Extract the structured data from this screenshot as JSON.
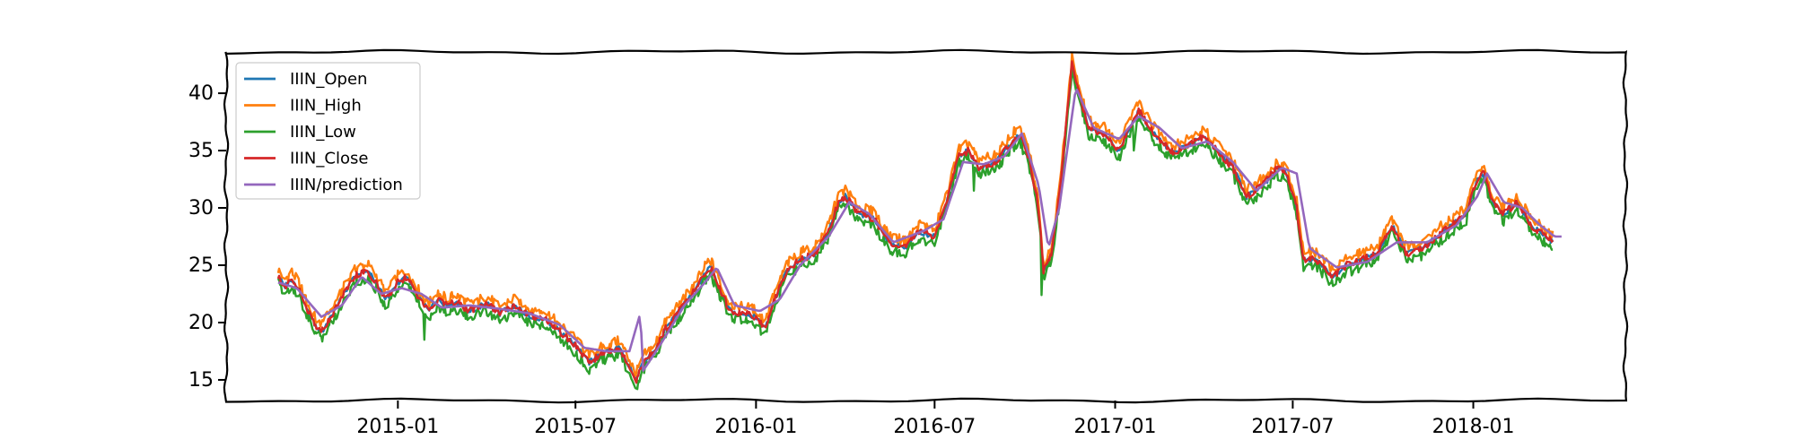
{
  "chart_data": {
    "type": "line",
    "title": "",
    "xlabel": "",
    "ylabel": "",
    "x_tick_labels": [
      "2015-01",
      "2015-07",
      "2016-01",
      "2016-07",
      "2017-01",
      "2017-07",
      "2018-01"
    ],
    "y_ticks": [
      15,
      20,
      25,
      30,
      35,
      40
    ],
    "xlim": [
      "2014-07-10",
      "2018-06-05"
    ],
    "ylim": [
      13.2,
      43.6
    ],
    "grid": false,
    "legend_position": "top-left",
    "series": [
      {
        "name": "IIIN_Open",
        "color": "#1f77b4"
      },
      {
        "name": "IIIN_High",
        "color": "#ff7f0e"
      },
      {
        "name": "IIIN_Low",
        "color": "#2ca02c"
      },
      {
        "name": "IIIN_Close",
        "color": "#d62728"
      },
      {
        "name": "IIIN/prediction",
        "color": "#9467bd"
      }
    ],
    "close_points": [
      [
        "2014-09-01",
        24.0
      ],
      [
        "2014-09-08",
        23.2
      ],
      [
        "2014-09-15",
        23.8
      ],
      [
        "2014-09-22",
        22.9
      ],
      [
        "2014-10-01",
        21.0
      ],
      [
        "2014-10-10",
        19.6
      ],
      [
        "2014-10-17",
        19.3
      ],
      [
        "2014-10-24",
        20.5
      ],
      [
        "2014-11-01",
        21.5
      ],
      [
        "2014-11-10",
        23.0
      ],
      [
        "2014-11-20",
        24.2
      ],
      [
        "2014-12-01",
        24.5
      ],
      [
        "2014-12-10",
        23.5
      ],
      [
        "2014-12-20",
        22.0
      ],
      [
        "2015-01-01",
        23.5
      ],
      [
        "2015-01-10",
        24.0
      ],
      [
        "2015-01-20",
        22.5
      ],
      [
        "2015-02-01",
        21.0
      ],
      [
        "2015-02-10",
        22.0
      ],
      [
        "2015-02-20",
        21.5
      ],
      [
        "2015-03-01",
        21.8
      ],
      [
        "2015-03-15",
        21.0
      ],
      [
        "2015-04-01",
        21.7
      ],
      [
        "2015-04-15",
        20.8
      ],
      [
        "2015-05-01",
        21.5
      ],
      [
        "2015-05-15",
        20.6
      ],
      [
        "2015-06-01",
        20.3
      ],
      [
        "2015-06-15",
        19.2
      ],
      [
        "2015-07-01",
        18.0
      ],
      [
        "2015-07-15",
        16.5
      ],
      [
        "2015-08-01",
        17.5
      ],
      [
        "2015-08-15",
        17.8
      ],
      [
        "2015-09-01",
        15.0
      ],
      [
        "2015-09-08",
        16.5
      ],
      [
        "2015-09-20",
        17.5
      ],
      [
        "2015-10-01",
        19.5
      ],
      [
        "2015-10-15",
        21.0
      ],
      [
        "2015-11-01",
        23.0
      ],
      [
        "2015-11-15",
        25.0
      ],
      [
        "2015-11-25",
        23.0
      ],
      [
        "2015-12-05",
        21.0
      ],
      [
        "2015-12-20",
        20.8
      ],
      [
        "2016-01-01",
        20.5
      ],
      [
        "2016-01-10",
        19.5
      ],
      [
        "2016-01-20",
        22.0
      ],
      [
        "2016-02-01",
        24.5
      ],
      [
        "2016-02-15",
        25.5
      ],
      [
        "2016-03-01",
        26.0
      ],
      [
        "2016-03-15",
        28.0
      ],
      [
        "2016-03-25",
        30.5
      ],
      [
        "2016-04-01",
        31.0
      ],
      [
        "2016-04-15",
        29.5
      ],
      [
        "2016-05-01",
        29.0
      ],
      [
        "2016-05-15",
        27.0
      ],
      [
        "2016-06-01",
        26.5
      ],
      [
        "2016-06-15",
        28.0
      ],
      [
        "2016-07-01",
        27.5
      ],
      [
        "2016-07-15",
        31.0
      ],
      [
        "2016-07-25",
        34.5
      ],
      [
        "2016-08-05",
        35.0
      ],
      [
        "2016-08-15",
        33.5
      ],
      [
        "2016-09-01",
        34.0
      ],
      [
        "2016-09-15",
        35.5
      ],
      [
        "2016-09-25",
        36.5
      ],
      [
        "2016-10-05",
        34.5
      ],
      [
        "2016-10-15",
        30.0
      ],
      [
        "2016-10-20",
        24.5
      ],
      [
        "2016-10-28",
        26.0
      ],
      [
        "2016-11-05",
        31.0
      ],
      [
        "2016-11-12",
        37.0
      ],
      [
        "2016-11-18",
        42.5
      ],
      [
        "2016-11-25",
        40.0
      ],
      [
        "2016-12-05",
        37.0
      ],
      [
        "2016-12-20",
        36.5
      ],
      [
        "2017-01-05",
        35.0
      ],
      [
        "2017-01-15",
        37.0
      ],
      [
        "2017-01-25",
        38.5
      ],
      [
        "2017-02-05",
        37.0
      ],
      [
        "2017-02-15",
        36.0
      ],
      [
        "2017-03-01",
        34.8
      ],
      [
        "2017-03-15",
        35.5
      ],
      [
        "2017-04-01",
        36.2
      ],
      [
        "2017-04-15",
        35.0
      ],
      [
        "2017-05-01",
        33.5
      ],
      [
        "2017-05-15",
        31.0
      ],
      [
        "2017-06-01",
        32.0
      ],
      [
        "2017-06-15",
        33.5
      ],
      [
        "2017-06-25",
        33.0
      ],
      [
        "2017-07-05",
        30.0
      ],
      [
        "2017-07-12",
        25.5
      ],
      [
        "2017-07-25",
        25.5
      ],
      [
        "2017-08-10",
        24.0
      ],
      [
        "2017-08-25",
        25.0
      ],
      [
        "2017-09-10",
        25.5
      ],
      [
        "2017-09-25",
        26.0
      ],
      [
        "2017-10-10",
        28.5
      ],
      [
        "2017-10-25",
        26.0
      ],
      [
        "2017-11-10",
        26.5
      ],
      [
        "2017-11-25",
        27.5
      ],
      [
        "2017-12-10",
        28.5
      ],
      [
        "2017-12-25",
        29.5
      ],
      [
        "2018-01-05",
        32.5
      ],
      [
        "2018-01-12",
        33.0
      ],
      [
        "2018-01-20",
        30.5
      ],
      [
        "2018-02-01",
        29.5
      ],
      [
        "2018-02-15",
        30.5
      ],
      [
        "2018-03-01",
        28.5
      ],
      [
        "2018-03-15",
        27.5
      ],
      [
        "2018-03-25",
        27.0
      ]
    ],
    "prediction_points": [
      [
        "2014-09-01",
        23.5
      ],
      [
        "2014-09-20",
        23.0
      ],
      [
        "2014-10-15",
        20.5
      ],
      [
        "2014-11-05",
        21.5
      ],
      [
        "2014-11-25",
        24.0
      ],
      [
        "2014-12-15",
        22.5
      ],
      [
        "2015-01-05",
        23.0
      ],
      [
        "2015-01-25",
        22.5
      ],
      [
        "2015-02-15",
        21.3
      ],
      [
        "2015-03-15",
        21.5
      ],
      [
        "2015-04-15",
        21.2
      ],
      [
        "2015-05-15",
        20.8
      ],
      [
        "2015-06-15",
        19.8
      ],
      [
        "2015-07-10",
        17.8
      ],
      [
        "2015-08-01",
        17.5
      ],
      [
        "2015-08-25",
        17.5
      ],
      [
        "2015-09-05",
        20.8
      ],
      [
        "2015-09-08",
        15.8
      ],
      [
        "2015-09-25",
        18.0
      ],
      [
        "2015-10-20",
        21.5
      ],
      [
        "2015-11-10",
        23.5
      ],
      [
        "2015-11-22",
        24.8
      ],
      [
        "2015-12-10",
        21.5
      ],
      [
        "2016-01-05",
        21.0
      ],
      [
        "2016-01-25",
        22.0
      ],
      [
        "2016-02-15",
        25.0
      ],
      [
        "2016-03-15",
        27.5
      ],
      [
        "2016-04-05",
        30.5
      ],
      [
        "2016-04-25",
        29.5
      ],
      [
        "2016-05-20",
        27.0
      ],
      [
        "2016-06-20",
        28.0
      ],
      [
        "2016-07-10",
        29.0
      ],
      [
        "2016-07-30",
        34.0
      ],
      [
        "2016-08-20",
        33.8
      ],
      [
        "2016-09-10",
        34.5
      ],
      [
        "2016-09-28",
        36.5
      ],
      [
        "2016-10-15",
        32.0
      ],
      [
        "2016-10-25",
        26.5
      ],
      [
        "2016-11-05",
        30.0
      ],
      [
        "2016-11-22",
        40.5
      ],
      [
        "2016-12-10",
        37.0
      ],
      [
        "2017-01-05",
        36.0
      ],
      [
        "2017-01-25",
        38.0
      ],
      [
        "2017-02-15",
        37.0
      ],
      [
        "2017-03-10",
        35.2
      ],
      [
        "2017-04-05",
        35.8
      ],
      [
        "2017-05-01",
        34.0
      ],
      [
        "2017-05-25",
        31.5
      ],
      [
        "2017-06-20",
        33.5
      ],
      [
        "2017-07-05",
        33.0
      ],
      [
        "2017-07-18",
        26.5
      ],
      [
        "2017-08-15",
        24.8
      ],
      [
        "2017-09-15",
        25.3
      ],
      [
        "2017-10-15",
        27.0
      ],
      [
        "2017-11-15",
        27.0
      ],
      [
        "2017-12-15",
        28.5
      ],
      [
        "2018-01-05",
        31.0
      ],
      [
        "2018-01-15",
        33.0
      ],
      [
        "2018-02-01",
        30.5
      ],
      [
        "2018-02-20",
        30.0
      ],
      [
        "2018-03-10",
        28.5
      ],
      [
        "2018-03-25",
        27.5
      ],
      [
        "2018-04-01",
        27.5
      ]
    ]
  }
}
